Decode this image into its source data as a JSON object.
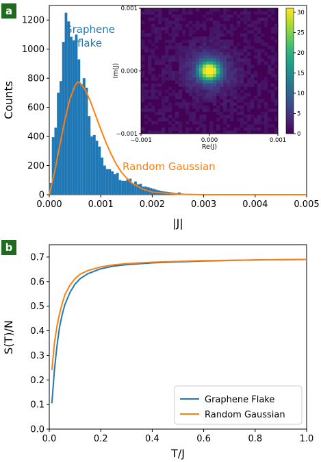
{
  "colors": {
    "blue": "#1f77b4",
    "orange": "#ff7f0e",
    "badge": "#1e6b1e"
  },
  "chart_data": [
    {
      "id": "a",
      "panel_label": "a",
      "type": "bar",
      "xlabel": "|J|",
      "ylabel": "Counts",
      "xlim": [
        0,
        0.005
      ],
      "ylim": [
        0,
        1300
      ],
      "xticks": [
        "0.000",
        "0.001",
        "0.002",
        "0.003",
        "0.004",
        "0.005"
      ],
      "yticks": [
        "0",
        "200",
        "400",
        "600",
        "800",
        "1000",
        "1200"
      ],
      "histogram": {
        "bin_width": 5e-05,
        "counts": [
          80,
          395,
          460,
          700,
          780,
          1050,
          1250,
          1190,
          1085,
          1060,
          1100,
          930,
          760,
          800,
          735,
          540,
          400,
          410,
          370,
          330,
          255,
          200,
          175,
          175,
          160,
          140,
          150,
          100,
          95,
          95,
          105,
          110,
          75,
          90,
          70,
          75,
          55,
          55,
          50,
          45,
          40,
          35,
          30,
          25,
          22,
          20,
          18,
          15,
          12,
          10,
          15,
          8,
          6,
          5,
          5,
          4,
          3,
          3,
          4,
          3,
          2,
          2,
          1,
          1,
          2,
          2,
          1,
          1,
          0,
          1,
          0,
          1
        ]
      },
      "curve": {
        "x": [
          0,
          0.0001,
          0.0002,
          0.0003,
          0.0004,
          0.0005,
          0.00055,
          0.0006,
          0.0007,
          0.0008,
          0.0009,
          0.001,
          0.0011,
          0.0012,
          0.0013,
          0.0014,
          0.0015,
          0.0016,
          0.0018,
          0.002,
          0.0025,
          0.003,
          0.004,
          0.005
        ],
        "y": [
          0,
          150,
          330,
          510,
          655,
          750,
          775,
          768,
          720,
          640,
          545,
          450,
          360,
          280,
          210,
          155,
          115,
          80,
          40,
          18,
          3,
          0,
          0,
          0
        ]
      },
      "annotations": {
        "graphene": [
          "Graphene",
          "flake"
        ],
        "random": "Random Gaussian"
      }
    },
    {
      "id": "inset",
      "type": "heatmap",
      "xlabel": "Re(J)",
      "ylabel": "Im(J)",
      "xlim": [
        -0.001,
        0.001
      ],
      "ylim": [
        -0.001,
        0.001
      ],
      "xticks": [
        "−0.001",
        "0.000",
        "0.001"
      ],
      "yticks": [
        "−0.001",
        "0.000",
        "0.001"
      ],
      "colorbar": {
        "min": 0,
        "max": 31,
        "ticks": [
          "0",
          "5",
          "10",
          "15",
          "20",
          "25",
          "30"
        ],
        "colormap": "viridis"
      },
      "peak": {
        "x": 0,
        "y": 0,
        "value": 31
      }
    },
    {
      "id": "b",
      "panel_label": "b",
      "type": "line",
      "xlabel": "T/J",
      "ylabel": "S(T)/N",
      "xlim": [
        0,
        1.0
      ],
      "ylim": [
        0,
        0.75
      ],
      "xticks": [
        "0.0",
        "0.2",
        "0.4",
        "0.6",
        "0.8",
        "1.0"
      ],
      "yticks": [
        "0.0",
        "0.1",
        "0.2",
        "0.3",
        "0.4",
        "0.5",
        "0.6",
        "0.7"
      ],
      "series": [
        {
          "name": "Graphene Flake",
          "color": "#1f77b4",
          "x": [
            0.01,
            0.02,
            0.03,
            0.04,
            0.05,
            0.06,
            0.08,
            0.1,
            0.12,
            0.15,
            0.2,
            0.25,
            0.3,
            0.4,
            0.5,
            0.6,
            0.8,
            1.0
          ],
          "y": [
            0.105,
            0.24,
            0.34,
            0.415,
            0.465,
            0.505,
            0.555,
            0.59,
            0.612,
            0.632,
            0.652,
            0.663,
            0.669,
            0.676,
            0.68,
            0.684,
            0.688,
            0.69
          ]
        },
        {
          "name": "Random Gaussian",
          "color": "#ff7f0e",
          "x": [
            0.01,
            0.02,
            0.03,
            0.04,
            0.05,
            0.06,
            0.08,
            0.1,
            0.12,
            0.15,
            0.2,
            0.25,
            0.3,
            0.4,
            0.5,
            0.6,
            0.8,
            1.0
          ],
          "y": [
            0.24,
            0.35,
            0.42,
            0.47,
            0.51,
            0.545,
            0.585,
            0.612,
            0.63,
            0.645,
            0.66,
            0.668,
            0.673,
            0.679,
            0.682,
            0.685,
            0.688,
            0.69
          ]
        }
      ],
      "legend": "bottom-right"
    }
  ]
}
